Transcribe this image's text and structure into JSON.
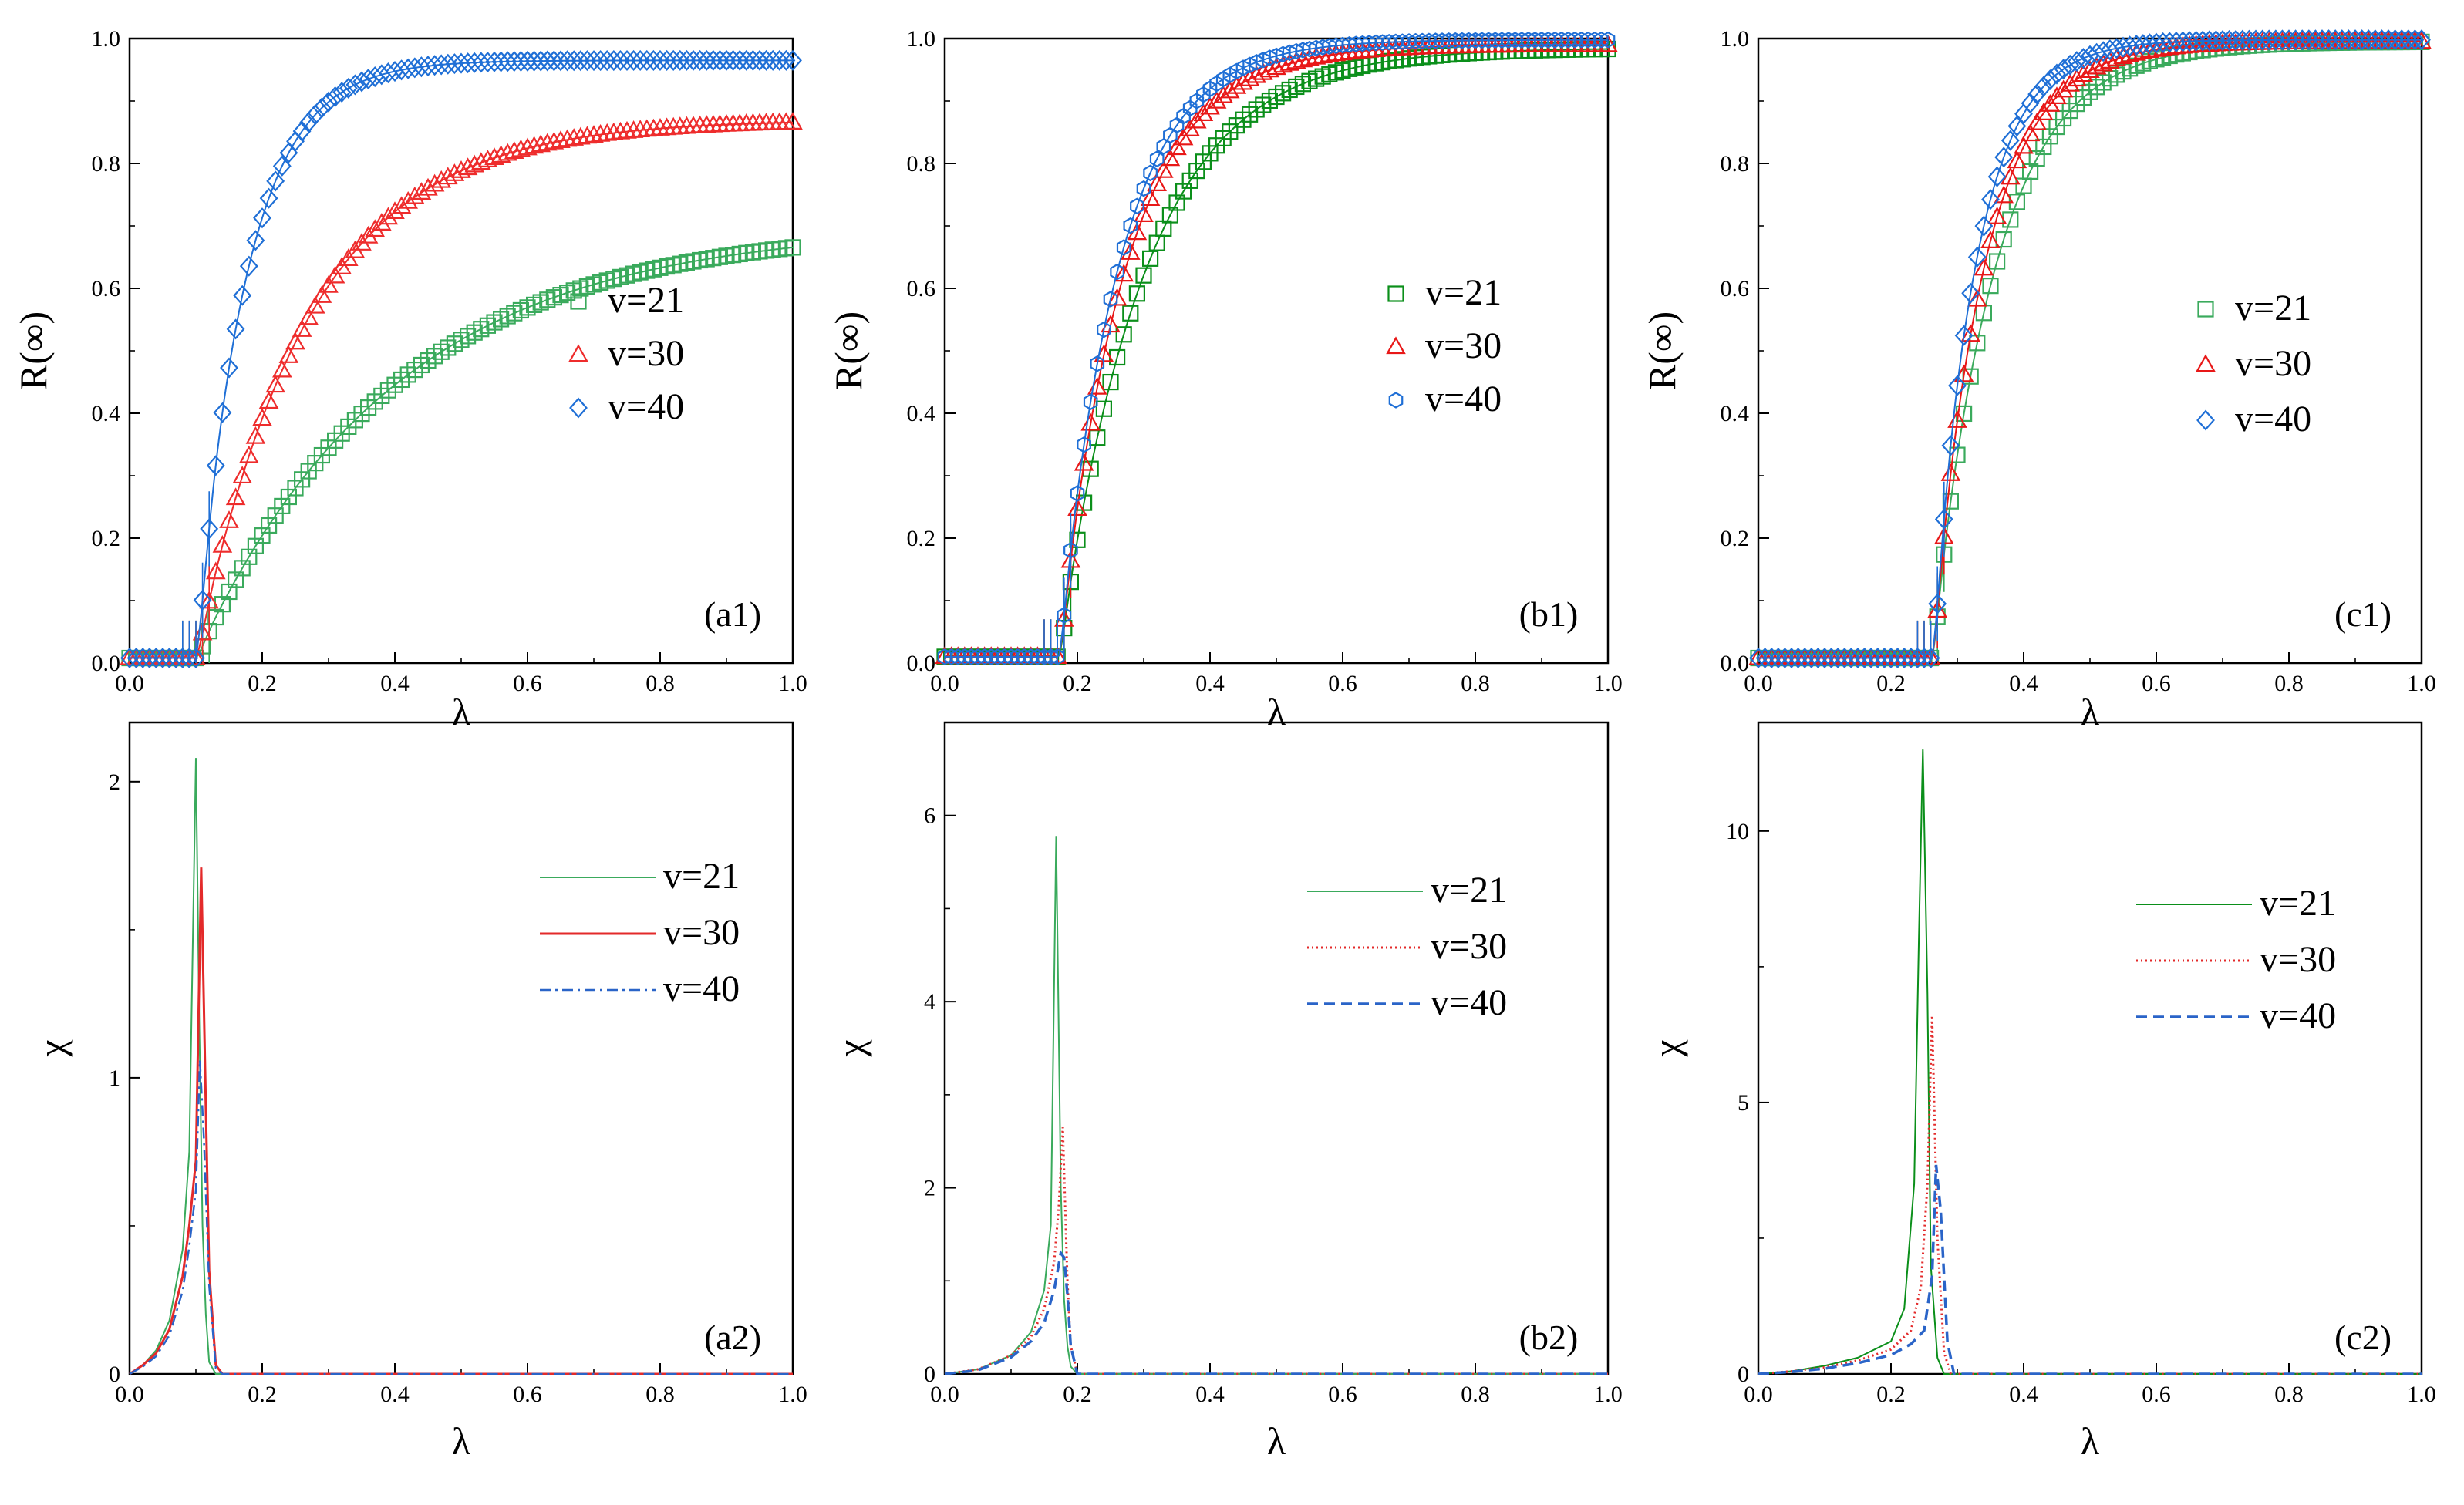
{
  "chart_data": [
    {
      "id": "a1",
      "type": "scatter",
      "tag": "(a1)",
      "marker_style": "a",
      "xlabel": "λ",
      "ylabel": "R(∞)",
      "xlim": [
        0,
        1
      ],
      "ylim": [
        0,
        1
      ],
      "xticks": [
        0.0,
        0.2,
        0.4,
        0.6,
        0.8,
        1.0
      ],
      "yticks": [
        0.0,
        0.2,
        0.4,
        0.6,
        0.8,
        1.0
      ],
      "ytick_labels": [
        "0.0",
        "0.2",
        "0.4",
        "0.6",
        "0.8",
        "1.0"
      ],
      "transition": {
        "lambda_c": 0.1,
        "baseline": 0.008
      },
      "series": [
        {
          "name": "v=21",
          "label": "v=21",
          "color": "#3aaa5c",
          "marker": "square",
          "rinf": 0.7,
          "k": 0.3,
          "sigma": 0.006
        },
        {
          "name": "v=30",
          "label": "v=30",
          "color": "#ee2c2c",
          "marker": "triangle",
          "rinf": 0.87,
          "k": 0.17,
          "sigma": 0.007
        },
        {
          "name": "v=40",
          "label": "v=40",
          "color": "#1f6fd6",
          "marker": "diamond",
          "rinf": 0.965,
          "k": 0.075,
          "sigma": 0.008
        }
      ]
    },
    {
      "id": "b1",
      "type": "scatter",
      "tag": "(b1)",
      "marker_style": "b",
      "xlabel": "λ",
      "ylabel": "R(∞)",
      "xlim": [
        0,
        1
      ],
      "ylim": [
        0,
        1
      ],
      "xticks": [
        0.0,
        0.2,
        0.4,
        0.6,
        0.8,
        1.0
      ],
      "yticks": [
        0.0,
        0.2,
        0.4,
        0.6,
        0.8,
        1.0
      ],
      "ytick_labels": [
        "0.0",
        "0.2",
        "0.4",
        "0.6",
        "0.8",
        "1.0"
      ],
      "transition": {
        "lambda_c": 0.172,
        "baseline": 0.01
      },
      "series": [
        {
          "name": "v=21",
          "label": "v=21",
          "color": "#0b8f1a",
          "marker": "square",
          "rinf": 0.985,
          "k": 0.13,
          "sigma": 0.006
        },
        {
          "name": "v=30",
          "label": "v=30",
          "color": "#e81818",
          "marker": "triangle",
          "rinf": 0.99,
          "k": 0.1,
          "sigma": 0.006
        },
        {
          "name": "v=40",
          "label": "v=40",
          "color": "#1f6fd6",
          "marker": "hexagon",
          "rinf": 0.998,
          "k": 0.09,
          "sigma": 0.006
        }
      ]
    },
    {
      "id": "c1",
      "type": "scatter",
      "tag": "(c1)",
      "marker_style": "c",
      "xlabel": "λ",
      "ylabel": "R(∞)",
      "xlim": [
        0,
        1
      ],
      "ylim": [
        0,
        1
      ],
      "xticks": [
        0.0,
        0.2,
        0.4,
        0.6,
        0.8,
        1.0
      ],
      "yticks": [
        0.0,
        0.2,
        0.4,
        0.6,
        0.8,
        1.0
      ],
      "ytick_labels": [
        "0.0",
        "0.2",
        "0.4",
        "0.6",
        "0.8",
        "1.0"
      ],
      "transition": {
        "lambda_c": 0.262,
        "baseline": 0.008
      },
      "series": [
        {
          "name": "v=21",
          "label": "v=21",
          "color": "#3aaa5c",
          "marker": "square",
          "rinf": 0.995,
          "k": 0.095,
          "sigma": 0.005
        },
        {
          "name": "v=30",
          "label": "v=30",
          "color": "#e81818",
          "marker": "triangle",
          "rinf": 0.995,
          "k": 0.078,
          "sigma": 0.006
        },
        {
          "name": "v=40",
          "label": "v=40",
          "color": "#1f6fd6",
          "marker": "diamond",
          "rinf": 0.998,
          "k": 0.065,
          "sigma": 0.007
        }
      ]
    },
    {
      "id": "a2",
      "type": "line",
      "tag": "(a2)",
      "xlabel": "λ",
      "ylabel": "χ",
      "xlim": [
        0,
        1
      ],
      "ylim": [
        0,
        2.2
      ],
      "xticks": [
        0.0,
        0.2,
        0.4,
        0.6,
        0.8,
        1.0
      ],
      "yticks": [
        0,
        1,
        2
      ],
      "ytick_labels": [
        "0",
        "1",
        "2"
      ],
      "series": [
        {
          "name": "v=21",
          "label": "v=21",
          "color": "#3aaa5c",
          "dash": "solid",
          "stroke_width": 2,
          "x": [
            0,
            0.02,
            0.04,
            0.06,
            0.08,
            0.09,
            0.1,
            0.105,
            0.11,
            0.115,
            0.12,
            0.13,
            0.14,
            1.0
          ],
          "y": [
            0,
            0.03,
            0.08,
            0.18,
            0.42,
            0.75,
            2.08,
            1.2,
            0.5,
            0.2,
            0.04,
            0.0,
            0.0,
            0.0
          ]
        },
        {
          "name": "v=30",
          "label": "v=30",
          "color": "#e32a2a",
          "dash": "solid",
          "stroke_width": 3,
          "x": [
            0,
            0.02,
            0.04,
            0.06,
            0.08,
            0.09,
            0.1,
            0.108,
            0.115,
            0.12,
            0.13,
            0.14,
            1.0
          ],
          "y": [
            0,
            0.03,
            0.07,
            0.15,
            0.33,
            0.5,
            0.72,
            1.71,
            0.9,
            0.35,
            0.03,
            0.0,
            0.0
          ]
        },
        {
          "name": "v=40",
          "label": "v=40",
          "color": "#2a64c8",
          "dash": "dashdot",
          "stroke_width": 2.5,
          "x": [
            0,
            0.02,
            0.04,
            0.06,
            0.08,
            0.09,
            0.1,
            0.106,
            0.112,
            0.12,
            0.13,
            0.14,
            1.0
          ],
          "y": [
            0,
            0.025,
            0.06,
            0.13,
            0.28,
            0.43,
            0.62,
            1.06,
            0.8,
            0.3,
            0.02,
            0.0,
            0.0
          ]
        }
      ]
    },
    {
      "id": "b2",
      "type": "line",
      "tag": "(b2)",
      "xlabel": "λ",
      "ylabel": "χ",
      "xlim": [
        0,
        1
      ],
      "ylim": [
        0,
        7
      ],
      "xticks": [
        0.0,
        0.2,
        0.4,
        0.6,
        0.8,
        1.0
      ],
      "yticks": [
        0,
        2,
        4,
        6
      ],
      "ytick_labels": [
        "0",
        "2",
        "4",
        "6"
      ],
      "series": [
        {
          "name": "v=21",
          "label": "v=21",
          "color": "#3aaa5c",
          "dash": "solid",
          "stroke_width": 2,
          "x": [
            0,
            0.05,
            0.1,
            0.13,
            0.15,
            0.16,
            0.168,
            0.175,
            0.18,
            0.185,
            0.19,
            0.2,
            1.0
          ],
          "y": [
            0,
            0.05,
            0.2,
            0.45,
            0.9,
            1.6,
            5.78,
            2.0,
            0.8,
            0.3,
            0.08,
            0.0,
            0.0
          ]
        },
        {
          "name": "v=30",
          "label": "v=30",
          "color": "#e32a2a",
          "dash": "dotted",
          "stroke_width": 3,
          "x": [
            0,
            0.05,
            0.1,
            0.13,
            0.15,
            0.165,
            0.172,
            0.178,
            0.185,
            0.19,
            0.2,
            1.0
          ],
          "y": [
            0,
            0.05,
            0.2,
            0.4,
            0.7,
            1.2,
            1.8,
            2.65,
            1.0,
            0.3,
            0.0,
            0.0
          ]
        },
        {
          "name": "v=40",
          "label": "v=40",
          "color": "#2a64c8",
          "dash": "dashed",
          "stroke_width": 3.5,
          "x": [
            0,
            0.05,
            0.1,
            0.13,
            0.15,
            0.165,
            0.175,
            0.18,
            0.185,
            0.19,
            0.2,
            1.0
          ],
          "y": [
            0,
            0.04,
            0.18,
            0.35,
            0.55,
            0.9,
            1.3,
            1.25,
            0.85,
            0.3,
            0.0,
            0.0
          ]
        }
      ]
    },
    {
      "id": "c2",
      "type": "line",
      "tag": "(c2)",
      "xlabel": "λ",
      "ylabel": "χ",
      "xlim": [
        0,
        1
      ],
      "ylim": [
        0,
        12
      ],
      "xticks": [
        0.0,
        0.2,
        0.4,
        0.6,
        0.8,
        1.0
      ],
      "yticks": [
        0,
        5,
        10
      ],
      "ytick_labels": [
        "0",
        "5",
        "10"
      ],
      "series": [
        {
          "name": "v=21",
          "label": "v=21",
          "color": "#0b8f1a",
          "dash": "solid",
          "stroke_width": 2,
          "x": [
            0,
            0.05,
            0.1,
            0.15,
            0.2,
            0.22,
            0.235,
            0.242,
            0.248,
            0.255,
            0.26,
            0.27,
            0.28,
            1.0
          ],
          "y": [
            0,
            0.05,
            0.15,
            0.3,
            0.6,
            1.2,
            3.5,
            8.0,
            11.5,
            7.0,
            2.0,
            0.3,
            0.0,
            0.0
          ]
        },
        {
          "name": "v=30",
          "label": "v=30",
          "color": "#e32a2a",
          "dash": "dotted",
          "stroke_width": 3,
          "x": [
            0,
            0.05,
            0.1,
            0.15,
            0.2,
            0.23,
            0.245,
            0.255,
            0.262,
            0.27,
            0.28,
            0.29,
            1.0
          ],
          "y": [
            0,
            0.05,
            0.12,
            0.25,
            0.45,
            0.8,
            1.6,
            3.5,
            6.6,
            2.5,
            0.4,
            0.0,
            0.0
          ]
        },
        {
          "name": "v=40",
          "label": "v=40",
          "color": "#2a64c8",
          "dash": "dashed",
          "stroke_width": 3.5,
          "x": [
            0,
            0.05,
            0.1,
            0.15,
            0.2,
            0.23,
            0.25,
            0.262,
            0.268,
            0.275,
            0.285,
            0.295,
            1.0
          ],
          "y": [
            0,
            0.04,
            0.1,
            0.2,
            0.35,
            0.55,
            0.8,
            1.8,
            3.85,
            3.0,
            0.6,
            0.0,
            0.0
          ]
        }
      ]
    }
  ]
}
